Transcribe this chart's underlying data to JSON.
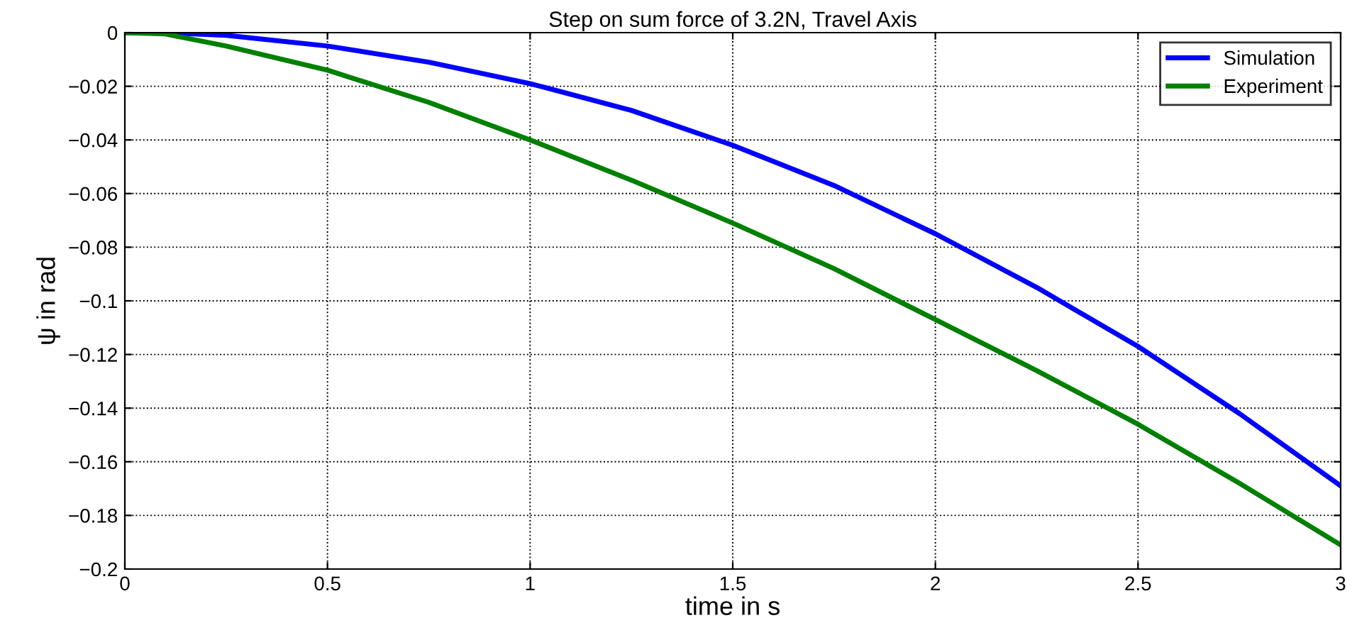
{
  "chart_data": {
    "type": "line",
    "title": "Step on sum force of 3.2N, Travel Axis",
    "xlabel": "time in s",
    "ylabel": "ψ in rad",
    "series": [
      {
        "name": "Simulation",
        "color": "#0000ff",
        "x": [
          0,
          0.1,
          0.25,
          0.5,
          0.75,
          1,
          1.25,
          1.5,
          1.75,
          2,
          2.25,
          2.5,
          2.75,
          3
        ],
        "values": [
          0,
          0,
          -0.001,
          -0.005,
          -0.011,
          -0.019,
          -0.029,
          -0.042,
          -0.057,
          -0.075,
          -0.095,
          -0.117,
          -0.142,
          -0.169
        ]
      },
      {
        "name": "Experiment",
        "color": "#008000",
        "x": [
          0,
          0.1,
          0.25,
          0.5,
          0.75,
          1,
          1.25,
          1.5,
          1.75,
          2,
          2.25,
          2.5,
          2.75,
          3
        ],
        "values": [
          0,
          -0.0005,
          -0.005,
          -0.014,
          -0.026,
          -0.04,
          -0.055,
          -0.071,
          -0.088,
          -0.107,
          -0.126,
          -0.146,
          -0.168,
          -0.191
        ]
      }
    ],
    "xlim": [
      0,
      3
    ],
    "xticks": [
      0,
      0.5,
      1,
      1.5,
      2,
      2.5,
      3
    ],
    "ylim": [
      -0.2,
      0
    ],
    "yticks": [
      {
        "value": -0.2,
        "label": "−0.2"
      },
      {
        "value": -0.18,
        "label": "−0.18"
      },
      {
        "value": -0.16,
        "label": "−0.16"
      },
      {
        "value": -0.14,
        "label": "−0.14"
      },
      {
        "value": -0.12,
        "label": "−0.12"
      },
      {
        "value": -0.1,
        "label": "−0.1"
      },
      {
        "value": -0.08,
        "label": "−0.08"
      },
      {
        "value": -0.06,
        "label": "−0.06"
      },
      {
        "value": -0.04,
        "label": "−0.04"
      },
      {
        "value": -0.02,
        "label": "−0.02"
      },
      0
    ],
    "grid": true,
    "legend": "top right",
    "line_style": "solid",
    "marker": "none"
  }
}
